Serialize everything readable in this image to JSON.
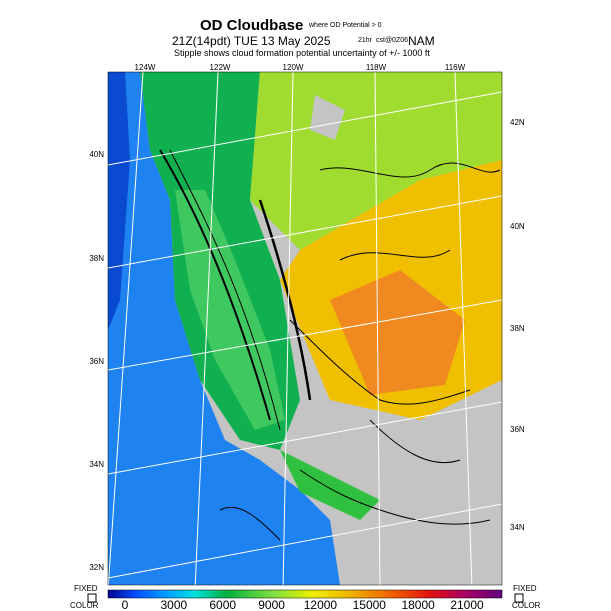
{
  "header": {
    "title": "OD Cloudbase",
    "title_note": "where OD Potential > 0",
    "time": "21Z(14pdt) TUE 13 May 2025",
    "run": "21hr",
    "init": "cst@0Z06",
    "model": "NAM",
    "subtitle": "Stipple shows cloud formation potential uncertainty of +/-  1000 ft"
  },
  "map": {
    "lon_labels": [
      "124W",
      "122W",
      "120W",
      "118W",
      "116W"
    ],
    "lat_labels_left": [
      "40N",
      "38N",
      "36N",
      "34N",
      "32N"
    ],
    "lat_labels_right": [
      "42N",
      "40N",
      "38N",
      "36N",
      "34N"
    ]
  },
  "colorbar": {
    "ticks": [
      0,
      3000,
      6000,
      9000,
      12000,
      15000,
      18000,
      21000
    ],
    "left_note": [
      "FIXED",
      "COLOR"
    ],
    "right_note": [
      "FIXED",
      "COLOR"
    ]
  }
}
